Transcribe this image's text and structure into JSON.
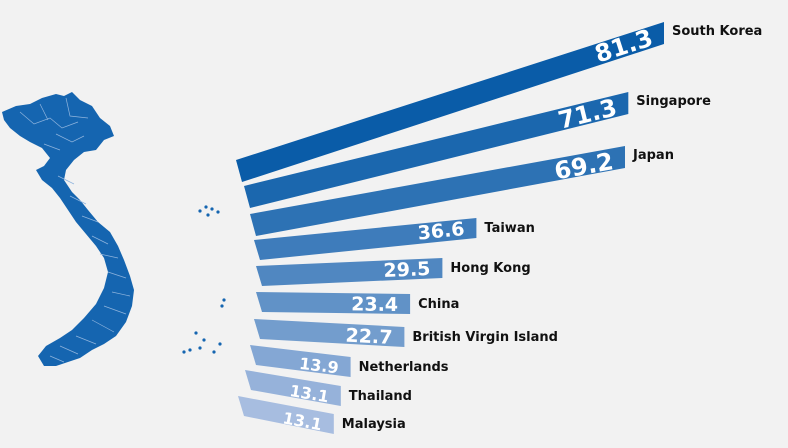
{
  "colors": {
    "map": "#1565b0",
    "bar_dark": "#0a5ca8",
    "bar_light": "#a7bde0"
  },
  "icons": {
    "map": "vietnam-map-icon"
  },
  "chart_data": {
    "type": "bar",
    "orientation": "horizontal",
    "categories": [
      "South Korea",
      "Singapore",
      "Japan",
      "Taiwan",
      "Hong Kong",
      "China",
      "British Virgin Island",
      "Netherlands",
      "Thailand",
      "Malaysia"
    ],
    "values": [
      81.3,
      71.3,
      69.2,
      36.6,
      29.5,
      23.4,
      22.7,
      13.9,
      13.1,
      13.1
    ],
    "value_labels": [
      "81.3",
      "71.3",
      "69.2",
      "36.6",
      "29.5",
      "23.4",
      "22.7",
      "13.9",
      "13.1",
      "13.1"
    ],
    "title": "",
    "xlabel": "",
    "ylabel": "",
    "grid": false,
    "legend": "none"
  }
}
